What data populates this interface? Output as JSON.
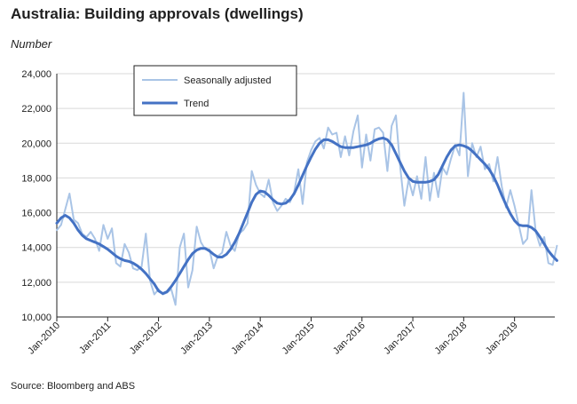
{
  "header": {
    "title": "Australia: Building approvals (dwellings)",
    "unit_label": "Number"
  },
  "footer": {
    "source": "Source: Bloomberg and ABS"
  },
  "chart_data": {
    "type": "line",
    "title": "Australia: Building approvals (dwellings)",
    "ylabel": "Number",
    "xlabel": "",
    "ylim": [
      10000,
      24000
    ],
    "yticks": [
      10000,
      12000,
      14000,
      16000,
      18000,
      20000,
      22000,
      24000
    ],
    "ytick_labels": [
      "10,000",
      "12,000",
      "14,000",
      "16,000",
      "18,000",
      "20,000",
      "22,000",
      "24,000"
    ],
    "xlim": [
      "2010-01",
      "2019-10"
    ],
    "xticks": [
      "2010-01",
      "2011-01",
      "2012-01",
      "2013-01",
      "2014-01",
      "2015-01",
      "2016-01",
      "2017-01",
      "2018-01",
      "2019-01"
    ],
    "xtick_labels": [
      "Jan-2010",
      "Jan-2011",
      "Jan-2012",
      "Jan-2013",
      "Jan-2014",
      "Jan-2015",
      "Jan-2016",
      "Jan-2017",
      "Jan-2018",
      "Jan-2019"
    ],
    "grid": "horizontal",
    "legend": "top-left",
    "colors": {
      "seasonally_adjusted": "#a9c4e6",
      "trend": "#4472c4",
      "grid": "#d9d9d9"
    },
    "series": [
      {
        "name": "Seasonally adjusted",
        "points": [
          [
            "2010-01",
            15000
          ],
          [
            "2010-02",
            15300
          ],
          [
            "2010-03",
            16200
          ],
          [
            "2010-04",
            17100
          ],
          [
            "2010-05",
            15600
          ],
          [
            "2010-06",
            15400
          ],
          [
            "2010-07",
            14800
          ],
          [
            "2010-08",
            14600
          ],
          [
            "2010-09",
            14900
          ],
          [
            "2010-10",
            14500
          ],
          [
            "2010-11",
            13800
          ],
          [
            "2010-12",
            15300
          ],
          [
            "2011-01",
            14500
          ],
          [
            "2011-02",
            15100
          ],
          [
            "2011-03",
            13100
          ],
          [
            "2011-04",
            12900
          ],
          [
            "2011-05",
            14200
          ],
          [
            "2011-06",
            13700
          ],
          [
            "2011-07",
            12800
          ],
          [
            "2011-08",
            12700
          ],
          [
            "2011-09",
            12900
          ],
          [
            "2011-10",
            14800
          ],
          [
            "2011-11",
            12100
          ],
          [
            "2011-12",
            11300
          ],
          [
            "2012-01",
            11600
          ],
          [
            "2012-02",
            11300
          ],
          [
            "2012-03",
            11400
          ],
          [
            "2012-04",
            11600
          ],
          [
            "2012-05",
            10700
          ],
          [
            "2012-06",
            14000
          ],
          [
            "2012-07",
            14800
          ],
          [
            "2012-08",
            11700
          ],
          [
            "2012-09",
            12700
          ],
          [
            "2012-10",
            15200
          ],
          [
            "2012-11",
            14300
          ],
          [
            "2012-12",
            13900
          ],
          [
            "2013-01",
            13900
          ],
          [
            "2013-02",
            12800
          ],
          [
            "2013-03",
            13500
          ],
          [
            "2013-04",
            13700
          ],
          [
            "2013-05",
            14900
          ],
          [
            "2013-06",
            14100
          ],
          [
            "2013-07",
            13800
          ],
          [
            "2013-08",
            14800
          ],
          [
            "2013-09",
            15000
          ],
          [
            "2013-10",
            15400
          ],
          [
            "2013-11",
            18400
          ],
          [
            "2013-12",
            17600
          ],
          [
            "2014-01",
            17100
          ],
          [
            "2014-02",
            16900
          ],
          [
            "2014-03",
            17900
          ],
          [
            "2014-04",
            16600
          ],
          [
            "2014-05",
            16100
          ],
          [
            "2014-06",
            16400
          ],
          [
            "2014-07",
            16800
          ],
          [
            "2014-08",
            16600
          ],
          [
            "2014-09",
            17200
          ],
          [
            "2014-10",
            18500
          ],
          [
            "2014-11",
            16500
          ],
          [
            "2014-12",
            18900
          ],
          [
            "2015-01",
            19600
          ],
          [
            "2015-02",
            20100
          ],
          [
            "2015-03",
            20300
          ],
          [
            "2015-04",
            19700
          ],
          [
            "2015-05",
            20900
          ],
          [
            "2015-06",
            20500
          ],
          [
            "2015-07",
            20600
          ],
          [
            "2015-08",
            19200
          ],
          [
            "2015-09",
            20400
          ],
          [
            "2015-10",
            19300
          ],
          [
            "2015-11",
            20700
          ],
          [
            "2015-12",
            21600
          ],
          [
            "2016-01",
            18600
          ],
          [
            "2016-02",
            20500
          ],
          [
            "2016-03",
            19000
          ],
          [
            "2016-04",
            20800
          ],
          [
            "2016-05",
            20900
          ],
          [
            "2016-06",
            20600
          ],
          [
            "2016-07",
            18400
          ],
          [
            "2016-08",
            21000
          ],
          [
            "2016-09",
            21600
          ],
          [
            "2016-10",
            18700
          ],
          [
            "2016-11",
            16400
          ],
          [
            "2016-12",
            17900
          ],
          [
            "2017-01",
            17000
          ],
          [
            "2017-02",
            18100
          ],
          [
            "2017-03",
            16800
          ],
          [
            "2017-04",
            19200
          ],
          [
            "2017-05",
            16700
          ],
          [
            "2017-06",
            18300
          ],
          [
            "2017-07",
            16900
          ],
          [
            "2017-08",
            18600
          ],
          [
            "2017-09",
            18200
          ],
          [
            "2017-10",
            19100
          ],
          [
            "2017-11",
            19900
          ],
          [
            "2017-12",
            19300
          ],
          [
            "2018-01",
            22900
          ],
          [
            "2018-02",
            18100
          ],
          [
            "2018-03",
            20000
          ],
          [
            "2018-04",
            19200
          ],
          [
            "2018-05",
            19800
          ],
          [
            "2018-06",
            18500
          ],
          [
            "2018-07",
            18800
          ],
          [
            "2018-08",
            17800
          ],
          [
            "2018-09",
            19200
          ],
          [
            "2018-10",
            17500
          ],
          [
            "2018-11",
            16300
          ],
          [
            "2018-12",
            17300
          ],
          [
            "2019-01",
            16400
          ],
          [
            "2019-02",
            15300
          ],
          [
            "2019-03",
            14200
          ],
          [
            "2019-04",
            14500
          ],
          [
            "2019-05",
            17300
          ],
          [
            "2019-06",
            14900
          ],
          [
            "2019-07",
            14100
          ],
          [
            "2019-08",
            14600
          ],
          [
            "2019-09",
            13100
          ],
          [
            "2019-10",
            13000
          ],
          [
            "2019-11",
            14100
          ]
        ]
      },
      {
        "name": "Trend",
        "points": [
          [
            "2010-01",
            15400
          ],
          [
            "2010-02",
            15700
          ],
          [
            "2010-03",
            15850
          ],
          [
            "2010-04",
            15700
          ],
          [
            "2010-05",
            15400
          ],
          [
            "2010-06",
            15000
          ],
          [
            "2010-07",
            14700
          ],
          [
            "2010-08",
            14500
          ],
          [
            "2010-09",
            14400
          ],
          [
            "2010-10",
            14300
          ],
          [
            "2010-11",
            14200
          ],
          [
            "2010-12",
            14050
          ],
          [
            "2011-01",
            13900
          ],
          [
            "2011-02",
            13700
          ],
          [
            "2011-03",
            13500
          ],
          [
            "2011-04",
            13350
          ],
          [
            "2011-05",
            13250
          ],
          [
            "2011-06",
            13200
          ],
          [
            "2011-07",
            13100
          ],
          [
            "2011-08",
            12950
          ],
          [
            "2011-09",
            12750
          ],
          [
            "2011-10",
            12500
          ],
          [
            "2011-11",
            12200
          ],
          [
            "2011-12",
            11900
          ],
          [
            "2012-01",
            11500
          ],
          [
            "2012-02",
            11350
          ],
          [
            "2012-03",
            11450
          ],
          [
            "2012-04",
            11750
          ],
          [
            "2012-05",
            12100
          ],
          [
            "2012-06",
            12500
          ],
          [
            "2012-07",
            12900
          ],
          [
            "2012-08",
            13300
          ],
          [
            "2012-09",
            13650
          ],
          [
            "2012-10",
            13850
          ],
          [
            "2012-11",
            13950
          ],
          [
            "2012-12",
            13950
          ],
          [
            "2013-01",
            13800
          ],
          [
            "2013-02",
            13600
          ],
          [
            "2013-03",
            13450
          ],
          [
            "2013-04",
            13450
          ],
          [
            "2013-05",
            13600
          ],
          [
            "2013-06",
            13900
          ],
          [
            "2013-07",
            14300
          ],
          [
            "2013-08",
            14800
          ],
          [
            "2013-09",
            15400
          ],
          [
            "2013-10",
            16000
          ],
          [
            "2013-11",
            16600
          ],
          [
            "2013-12",
            17050
          ],
          [
            "2014-01",
            17250
          ],
          [
            "2014-02",
            17200
          ],
          [
            "2014-03",
            17000
          ],
          [
            "2014-04",
            16750
          ],
          [
            "2014-05",
            16550
          ],
          [
            "2014-06",
            16500
          ],
          [
            "2014-07",
            16550
          ],
          [
            "2014-08",
            16750
          ],
          [
            "2014-09",
            17100
          ],
          [
            "2014-10",
            17600
          ],
          [
            "2014-11",
            18150
          ],
          [
            "2014-12",
            18700
          ],
          [
            "2015-01",
            19200
          ],
          [
            "2015-02",
            19650
          ],
          [
            "2015-03",
            20000
          ],
          [
            "2015-04",
            20200
          ],
          [
            "2015-05",
            20200
          ],
          [
            "2015-06",
            20100
          ],
          [
            "2015-07",
            19950
          ],
          [
            "2015-08",
            19800
          ],
          [
            "2015-09",
            19750
          ],
          [
            "2015-10",
            19750
          ],
          [
            "2015-11",
            19750
          ],
          [
            "2015-12",
            19800
          ],
          [
            "2016-01",
            19850
          ],
          [
            "2016-02",
            19900
          ],
          [
            "2016-03",
            20000
          ],
          [
            "2016-04",
            20150
          ],
          [
            "2016-05",
            20250
          ],
          [
            "2016-06",
            20300
          ],
          [
            "2016-07",
            20200
          ],
          [
            "2016-08",
            19900
          ],
          [
            "2016-09",
            19400
          ],
          [
            "2016-10",
            18900
          ],
          [
            "2016-11",
            18400
          ],
          [
            "2016-12",
            18000
          ],
          [
            "2017-01",
            17800
          ],
          [
            "2017-02",
            17750
          ],
          [
            "2017-03",
            17750
          ],
          [
            "2017-04",
            17750
          ],
          [
            "2017-05",
            17800
          ],
          [
            "2017-06",
            17900
          ],
          [
            "2017-07",
            18200
          ],
          [
            "2017-08",
            18700
          ],
          [
            "2017-09",
            19200
          ],
          [
            "2017-10",
            19600
          ],
          [
            "2017-11",
            19850
          ],
          [
            "2017-12",
            19900
          ],
          [
            "2018-01",
            19850
          ],
          [
            "2018-02",
            19750
          ],
          [
            "2018-03",
            19550
          ],
          [
            "2018-04",
            19300
          ],
          [
            "2018-05",
            19050
          ],
          [
            "2018-06",
            18800
          ],
          [
            "2018-07",
            18500
          ],
          [
            "2018-08",
            18100
          ],
          [
            "2018-09",
            17600
          ],
          [
            "2018-10",
            17000
          ],
          [
            "2018-11",
            16450
          ],
          [
            "2018-12",
            15950
          ],
          [
            "2019-01",
            15550
          ],
          [
            "2019-02",
            15300
          ],
          [
            "2019-03",
            15250
          ],
          [
            "2019-04",
            15250
          ],
          [
            "2019-05",
            15150
          ],
          [
            "2019-06",
            14950
          ],
          [
            "2019-07",
            14600
          ],
          [
            "2019-08",
            14200
          ],
          [
            "2019-09",
            13800
          ],
          [
            "2019-10",
            13500
          ],
          [
            "2019-11",
            13250
          ]
        ]
      }
    ]
  }
}
